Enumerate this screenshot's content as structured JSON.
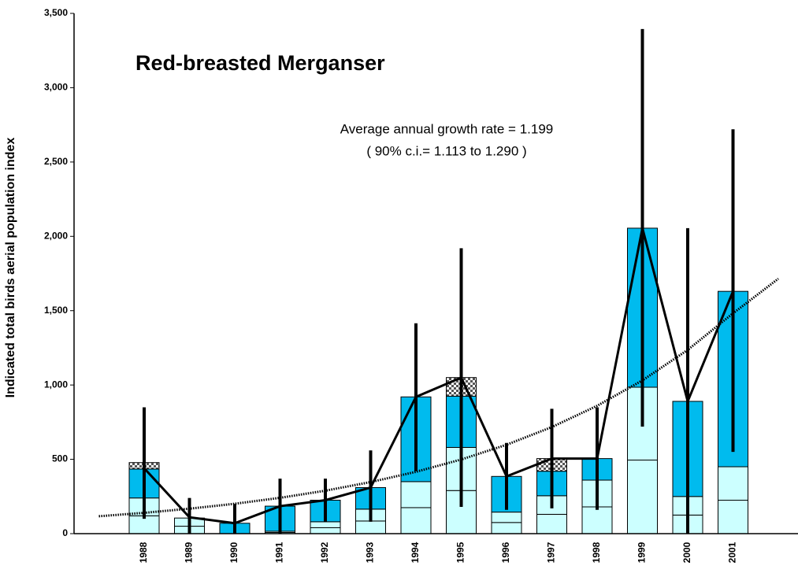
{
  "chart_data": {
    "type": "bar",
    "stacked": true,
    "title": "Red-breasted Merganser",
    "annotations": [
      "Average annual growth rate = 1.199",
      "( 90% c.i.= 1.113 to 1.290 )"
    ],
    "y_label": "Indicated total birds aerial population index",
    "categories": [
      "1988",
      "1989",
      "1990",
      "1991",
      "1992",
      "1993",
      "1994",
      "1995",
      "1996",
      "1997",
      "1998",
      "1999",
      "2000",
      "2001"
    ],
    "series": [
      {
        "color": "#ccffff",
        "values": [
          120,
          50,
          0,
          8,
          40,
          85,
          175,
          290,
          75,
          130,
          180,
          495,
          125,
          225
        ]
      },
      {
        "color": "#ccffff",
        "values": [
          120,
          55,
          0,
          8,
          40,
          80,
          175,
          290,
          70,
          125,
          180,
          490,
          125,
          225
        ]
      },
      {
        "color": "#00bbee",
        "values": [
          195,
          0,
          70,
          169,
          145,
          145,
          570,
          345,
          240,
          165,
          145,
          1070,
          640,
          1180
        ]
      },
      {
        "color": "#808080",
        "pattern": "checkered",
        "values": [
          43,
          0,
          0,
          0,
          0,
          0,
          0,
          125,
          0,
          85,
          0,
          0,
          0,
          0
        ]
      }
    ],
    "line": {
      "color": "#000000",
      "values": [
        440,
        110,
        70,
        185,
        225,
        310,
        920,
        1050,
        385,
        505,
        505,
        2055,
        890,
        1630
      ]
    },
    "error_low": [
      100,
      0,
      0,
      0,
      80,
      80,
      420,
      180,
      160,
      170,
      160,
      720,
      0,
      550
    ],
    "error_high": [
      850,
      240,
      200,
      370,
      370,
      560,
      1415,
      1920,
      610,
      840,
      850,
      3395,
      2055,
      2720
    ],
    "trend": {
      "color": "#000000",
      "x": [
        1987,
        1988,
        1989,
        1990,
        1991,
        1992,
        1993,
        1994,
        1995,
        1996,
        1997,
        1998,
        1999,
        2000,
        2001,
        2002
      ],
      "values": [
        117,
        140,
        168,
        201,
        241,
        289,
        347,
        416,
        499,
        598,
        717,
        860,
        1031,
        1236,
        1482,
        1715
      ]
    },
    "ylim": [
      0,
      3500
    ],
    "yticks": [
      0,
      500,
      {
        "value": 1000,
        "label": "1,000"
      },
      {
        "value": 1500,
        "label": "1,500"
      },
      {
        "value": 2000,
        "label": "2,000"
      },
      {
        "value": 2500,
        "label": "2,500"
      },
      {
        "value": 3000,
        "label": "3,000"
      },
      {
        "value": 3500,
        "label": "3,500"
      }
    ]
  }
}
